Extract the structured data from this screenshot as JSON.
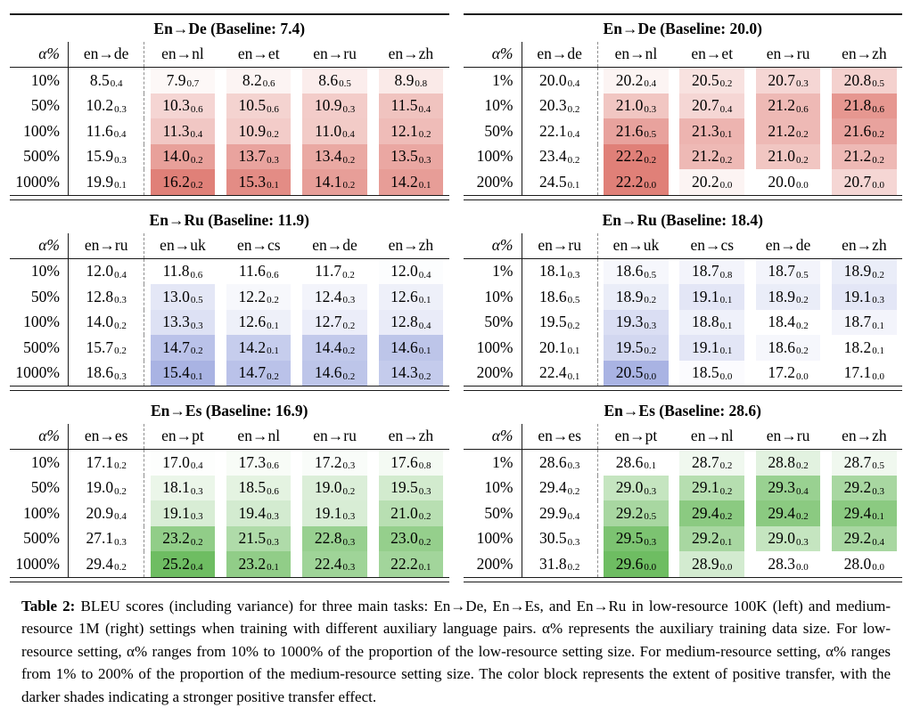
{
  "colors": {
    "red": "#e08078",
    "blue": "#a9b3e3",
    "green": "#6ebd62"
  },
  "caption": {
    "label": "Table 2:",
    "text": "BLEU scores (including variance) for three main tasks: En→De, En→Es, and En→Ru in low-resource 100K (left) and medium-resource 1M (right) settings when training with different auxiliary language pairs. α% represents the auxiliary training data size. For low-resource setting, α% ranges from 10% to 1000% of the proportion of the low-resource setting size. For medium-resource setting, α% ranges from 1% to 200% of the proportion of the medium-resource setting size. The color block represents the extent of positive transfer, with the darker shades indicating a stronger positive transfer effect."
  },
  "tables": [
    {
      "title": "En→De (Baseline: 7.4)",
      "baseline": "7.4",
      "accent": "red",
      "alpha_header": "α%",
      "columns": [
        "en→de",
        "en→nl",
        "en→et",
        "en→ru",
        "en→zh"
      ],
      "rows": [
        {
          "alpha": "10%",
          "cells": [
            [
              "8.5",
              "0.4"
            ],
            [
              "7.9",
              "0.7"
            ],
            [
              "8.2",
              "0.6"
            ],
            [
              "8.6",
              "0.5"
            ],
            [
              "8.9",
              "0.8"
            ]
          ]
        },
        {
          "alpha": "50%",
          "cells": [
            [
              "10.2",
              "0.3"
            ],
            [
              "10.3",
              "0.6"
            ],
            [
              "10.5",
              "0.6"
            ],
            [
              "10.9",
              "0.3"
            ],
            [
              "11.5",
              "0.4"
            ]
          ]
        },
        {
          "alpha": "100%",
          "cells": [
            [
              "11.6",
              "0.4"
            ],
            [
              "11.3",
              "0.4"
            ],
            [
              "10.9",
              "0.2"
            ],
            [
              "11.0",
              "0.4"
            ],
            [
              "12.1",
              "0.2"
            ]
          ]
        },
        {
          "alpha": "500%",
          "cells": [
            [
              "15.9",
              "0.3"
            ],
            [
              "14.0",
              "0.2"
            ],
            [
              "13.7",
              "0.3"
            ],
            [
              "13.4",
              "0.2"
            ],
            [
              "13.5",
              "0.3"
            ]
          ]
        },
        {
          "alpha": "1000%",
          "cells": [
            [
              "19.9",
              "0.1"
            ],
            [
              "16.2",
              "0.2"
            ],
            [
              "15.3",
              "0.1"
            ],
            [
              "14.1",
              "0.2"
            ],
            [
              "14.2",
              "0.1"
            ]
          ]
        }
      ]
    },
    {
      "title": "En→De (Baseline: 20.0)",
      "baseline": "20.0",
      "accent": "red",
      "alpha_header": "α%",
      "columns": [
        "en→de",
        "en→nl",
        "en→et",
        "en→ru",
        "en→zh"
      ],
      "rows": [
        {
          "alpha": "1%",
          "cells": [
            [
              "20.0",
              "0.4"
            ],
            [
              "20.2",
              "0.4"
            ],
            [
              "20.5",
              "0.2"
            ],
            [
              "20.7",
              "0.3"
            ],
            [
              "20.8",
              "0.5"
            ]
          ]
        },
        {
          "alpha": "10%",
          "cells": [
            [
              "20.3",
              "0.2"
            ],
            [
              "21.0",
              "0.3"
            ],
            [
              "20.7",
              "0.4"
            ],
            [
              "21.2",
              "0.6"
            ],
            [
              "21.8",
              "0.6"
            ]
          ]
        },
        {
          "alpha": "50%",
          "cells": [
            [
              "22.1",
              "0.4"
            ],
            [
              "21.6",
              "0.5"
            ],
            [
              "21.3",
              "0.1"
            ],
            [
              "21.2",
              "0.2"
            ],
            [
              "21.6",
              "0.2"
            ]
          ]
        },
        {
          "alpha": "100%",
          "cells": [
            [
              "23.4",
              "0.2"
            ],
            [
              "22.2",
              "0.2"
            ],
            [
              "21.2",
              "0.2"
            ],
            [
              "21.0",
              "0.2"
            ],
            [
              "21.2",
              "0.2"
            ]
          ]
        },
        {
          "alpha": "200%",
          "cells": [
            [
              "24.5",
              "0.1"
            ],
            [
              "22.2",
              "0.0"
            ],
            [
              "20.2",
              "0.0"
            ],
            [
              "20.0",
              "0.0"
            ],
            [
              "20.7",
              "0.0"
            ]
          ]
        }
      ]
    },
    {
      "title": "En→Ru (Baseline: 11.9)",
      "baseline": "11.9",
      "accent": "blue",
      "alpha_header": "α%",
      "columns": [
        "en→ru",
        "en→uk",
        "en→cs",
        "en→de",
        "en→zh"
      ],
      "rows": [
        {
          "alpha": "10%",
          "cells": [
            [
              "12.0",
              "0.4"
            ],
            [
              "11.8",
              "0.6"
            ],
            [
              "11.6",
              "0.6"
            ],
            [
              "11.7",
              "0.2"
            ],
            [
              "12.0",
              "0.4"
            ]
          ]
        },
        {
          "alpha": "50%",
          "cells": [
            [
              "12.8",
              "0.3"
            ],
            [
              "13.0",
              "0.5"
            ],
            [
              "12.2",
              "0.2"
            ],
            [
              "12.4",
              "0.3"
            ],
            [
              "12.6",
              "0.1"
            ]
          ]
        },
        {
          "alpha": "100%",
          "cells": [
            [
              "14.0",
              "0.2"
            ],
            [
              "13.3",
              "0.3"
            ],
            [
              "12.6",
              "0.1"
            ],
            [
              "12.7",
              "0.2"
            ],
            [
              "12.8",
              "0.4"
            ]
          ]
        },
        {
          "alpha": "500%",
          "cells": [
            [
              "15.7",
              "0.2"
            ],
            [
              "14.7",
              "0.2"
            ],
            [
              "14.2",
              "0.1"
            ],
            [
              "14.4",
              "0.2"
            ],
            [
              "14.6",
              "0.1"
            ]
          ]
        },
        {
          "alpha": "1000%",
          "cells": [
            [
              "18.6",
              "0.3"
            ],
            [
              "15.4",
              "0.1"
            ],
            [
              "14.7",
              "0.2"
            ],
            [
              "14.6",
              "0.2"
            ],
            [
              "14.3",
              "0.2"
            ]
          ]
        }
      ]
    },
    {
      "title": "En→Ru (Baseline: 18.4)",
      "baseline": "18.4",
      "accent": "blue",
      "alpha_header": "α%",
      "columns": [
        "en→ru",
        "en→uk",
        "en→cs",
        "en→de",
        "en→zh"
      ],
      "rows": [
        {
          "alpha": "1%",
          "cells": [
            [
              "18.1",
              "0.3"
            ],
            [
              "18.6",
              "0.5"
            ],
            [
              "18.7",
              "0.8"
            ],
            [
              "18.7",
              "0.5"
            ],
            [
              "18.9",
              "0.2"
            ]
          ]
        },
        {
          "alpha": "10%",
          "cells": [
            [
              "18.6",
              "0.5"
            ],
            [
              "18.9",
              "0.2"
            ],
            [
              "19.1",
              "0.1"
            ],
            [
              "18.9",
              "0.2"
            ],
            [
              "19.1",
              "0.3"
            ]
          ]
        },
        {
          "alpha": "50%",
          "cells": [
            [
              "19.5",
              "0.2"
            ],
            [
              "19.3",
              "0.3"
            ],
            [
              "18.8",
              "0.1"
            ],
            [
              "18.4",
              "0.2"
            ],
            [
              "18.7",
              "0.1"
            ]
          ]
        },
        {
          "alpha": "100%",
          "cells": [
            [
              "20.1",
              "0.1"
            ],
            [
              "19.5",
              "0.2"
            ],
            [
              "19.1",
              "0.1"
            ],
            [
              "18.6",
              "0.2"
            ],
            [
              "18.2",
              "0.1"
            ]
          ]
        },
        {
          "alpha": "200%",
          "cells": [
            [
              "22.4",
              "0.1"
            ],
            [
              "20.5",
              "0.0"
            ],
            [
              "18.5",
              "0.0"
            ],
            [
              "17.2",
              "0.0"
            ],
            [
              "17.1",
              "0.0"
            ]
          ]
        }
      ]
    },
    {
      "title": "En→Es (Baseline: 16.9)",
      "baseline": "16.9",
      "accent": "green",
      "alpha_header": "α%",
      "columns": [
        "en→es",
        "en→pt",
        "en→nl",
        "en→ru",
        "en→zh"
      ],
      "rows": [
        {
          "alpha": "10%",
          "cells": [
            [
              "17.1",
              "0.2"
            ],
            [
              "17.0",
              "0.4"
            ],
            [
              "17.3",
              "0.6"
            ],
            [
              "17.2",
              "0.3"
            ],
            [
              "17.6",
              "0.8"
            ]
          ]
        },
        {
          "alpha": "50%",
          "cells": [
            [
              "19.0",
              "0.2"
            ],
            [
              "18.1",
              "0.3"
            ],
            [
              "18.5",
              "0.6"
            ],
            [
              "19.0",
              "0.2"
            ],
            [
              "19.5",
              "0.3"
            ]
          ]
        },
        {
          "alpha": "100%",
          "cells": [
            [
              "20.9",
              "0.4"
            ],
            [
              "19.1",
              "0.3"
            ],
            [
              "19.4",
              "0.3"
            ],
            [
              "19.1",
              "0.3"
            ],
            [
              "21.0",
              "0.2"
            ]
          ]
        },
        {
          "alpha": "500%",
          "cells": [
            [
              "27.1",
              "0.3"
            ],
            [
              "23.2",
              "0.2"
            ],
            [
              "21.5",
              "0.3"
            ],
            [
              "22.8",
              "0.3"
            ],
            [
              "23.0",
              "0.2"
            ]
          ]
        },
        {
          "alpha": "1000%",
          "cells": [
            [
              "29.4",
              "0.2"
            ],
            [
              "25.2",
              "0.4"
            ],
            [
              "23.2",
              "0.1"
            ],
            [
              "22.4",
              "0.3"
            ],
            [
              "22.2",
              "0.1"
            ]
          ]
        }
      ]
    },
    {
      "title": "En→Es (Baseline: 28.6)",
      "baseline": "28.6",
      "accent": "green",
      "alpha_header": "α%",
      "columns": [
        "en→es",
        "en→pt",
        "en→nl",
        "en→ru",
        "en→zh"
      ],
      "rows": [
        {
          "alpha": "1%",
          "cells": [
            [
              "28.6",
              "0.3"
            ],
            [
              "28.6",
              "0.1"
            ],
            [
              "28.7",
              "0.2"
            ],
            [
              "28.8",
              "0.2"
            ],
            [
              "28.7",
              "0.5"
            ]
          ]
        },
        {
          "alpha": "10%",
          "cells": [
            [
              "29.4",
              "0.2"
            ],
            [
              "29.0",
              "0.3"
            ],
            [
              "29.1",
              "0.2"
            ],
            [
              "29.3",
              "0.4"
            ],
            [
              "29.2",
              "0.3"
            ]
          ]
        },
        {
          "alpha": "50%",
          "cells": [
            [
              "29.9",
              "0.4"
            ],
            [
              "29.2",
              "0.5"
            ],
            [
              "29.4",
              "0.2"
            ],
            [
              "29.4",
              "0.2"
            ],
            [
              "29.4",
              "0.1"
            ]
          ]
        },
        {
          "alpha": "100%",
          "cells": [
            [
              "30.5",
              "0.3"
            ],
            [
              "29.5",
              "0.3"
            ],
            [
              "29.2",
              "0.1"
            ],
            [
              "29.0",
              "0.3"
            ],
            [
              "29.2",
              "0.4"
            ]
          ]
        },
        {
          "alpha": "200%",
          "cells": [
            [
              "31.8",
              "0.2"
            ],
            [
              "29.6",
              "0.0"
            ],
            [
              "28.9",
              "0.0"
            ],
            [
              "28.3",
              "0.0"
            ],
            [
              "28.0",
              "0.0"
            ]
          ]
        }
      ]
    }
  ]
}
